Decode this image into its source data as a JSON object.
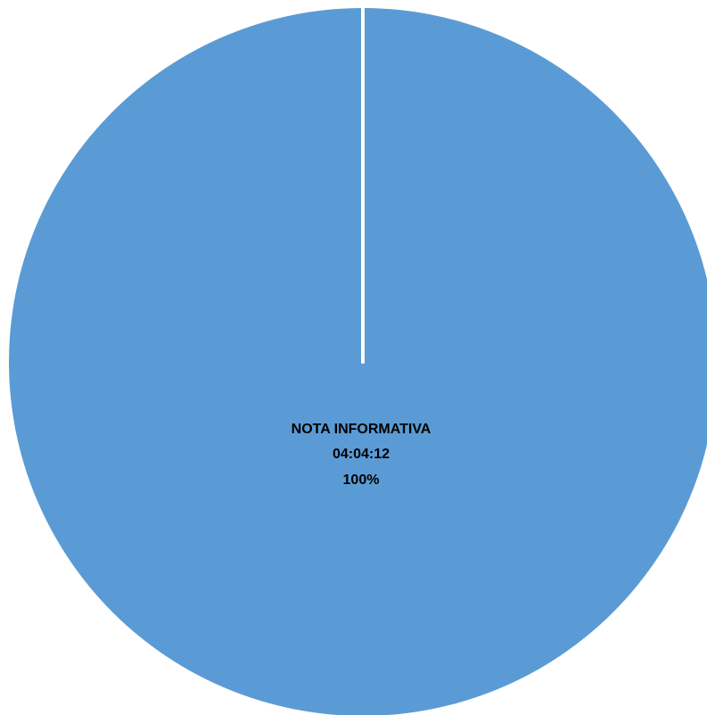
{
  "chart_data": {
    "type": "pie",
    "title": "",
    "slices": [
      {
        "label": "NOTA INFORMATIVA",
        "value_text": "04:04:12",
        "percent_text": "100%",
        "percent": 100,
        "color": "#5B9BD5"
      }
    ],
    "legend": "none",
    "separator_color": "#ffffff"
  }
}
